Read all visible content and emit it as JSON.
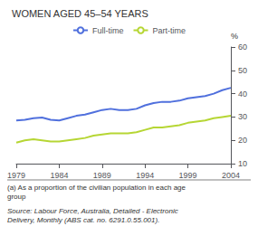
{
  "chart_data": {
    "type": "line",
    "title": "WOMEN AGED 45–54 YEARS",
    "ylabel": "%",
    "x": [
      1979,
      1980,
      1981,
      1982,
      1983,
      1984,
      1985,
      1986,
      1987,
      1988,
      1989,
      1990,
      1991,
      1992,
      1993,
      1994,
      1995,
      1996,
      1997,
      1998,
      1999,
      2000,
      2001,
      2002,
      2003,
      2004
    ],
    "series": [
      {
        "name": "Full-time",
        "values": [
          28.5,
          28.8,
          29.5,
          29.8,
          28.8,
          28.5,
          29.5,
          30.5,
          31.0,
          32.0,
          33.0,
          33.5,
          33.0,
          33.0,
          33.5,
          35.0,
          36.0,
          36.5,
          36.5,
          37.0,
          38.0,
          38.5,
          39.0,
          40.0,
          41.5,
          42.5
        ]
      },
      {
        "name": "Part-time",
        "values": [
          19.0,
          20.0,
          20.5,
          20.0,
          19.5,
          19.5,
          20.0,
          20.5,
          21.0,
          22.0,
          22.5,
          23.0,
          23.0,
          23.0,
          23.5,
          24.5,
          25.5,
          25.5,
          26.0,
          26.5,
          27.5,
          28.0,
          28.5,
          29.5,
          30.0,
          30.5
        ]
      }
    ],
    "xlim": [
      1979,
      2004
    ],
    "ylim": [
      10,
      60
    ],
    "xticks": [
      1979,
      1984,
      1989,
      1994,
      1999,
      2004
    ],
    "yticks": [
      10,
      20,
      30,
      40,
      50,
      60
    ],
    "grid": false,
    "legend": "top",
    "annotations": [
      "(a) As a proportion of the civilian population in each age",
      "group",
      "Source: Labour Force, Australia, Detailed - Electronic",
      "Delivery, Monthly (ABS cat. no. 6291.0.55.001)."
    ]
  }
}
